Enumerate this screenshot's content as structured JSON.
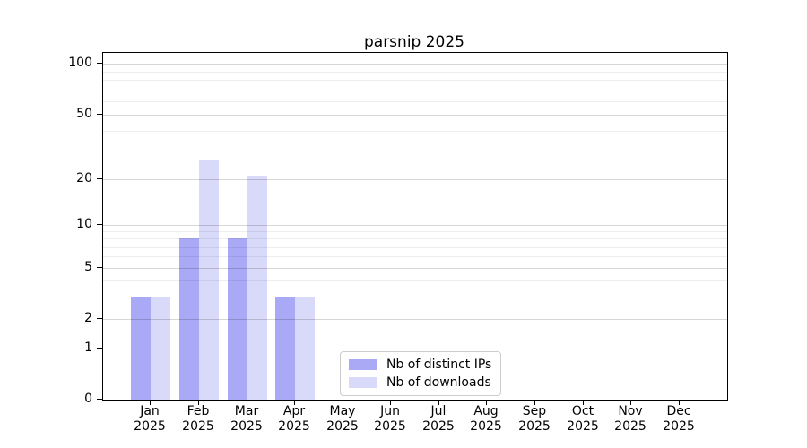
{
  "chart_data": {
    "type": "bar",
    "title": "parsnip 2025",
    "categories": [
      "Jan",
      "Feb",
      "Mar",
      "Apr",
      "May",
      "Jun",
      "Jul",
      "Aug",
      "Sep",
      "Oct",
      "Nov",
      "Dec"
    ],
    "x_tick_year": "2025",
    "series": [
      {
        "name": "Nb of distinct IPs",
        "color": "#a9a9f5",
        "values": [
          3,
          8,
          8,
          3,
          0,
          0,
          0,
          0,
          0,
          0,
          0,
          0
        ]
      },
      {
        "name": "Nb of downloads",
        "color": "#d9d9fa",
        "values": [
          3,
          26,
          21,
          3,
          0,
          0,
          0,
          0,
          0,
          0,
          0,
          0
        ]
      }
    ],
    "yaxis": {
      "scale": "log-like-with-zero-baseline",
      "major_ticks": [
        0,
        1,
        2,
        5,
        10,
        20,
        50,
        100
      ],
      "minor_gridlines": [
        3,
        4,
        6,
        7,
        8,
        9,
        30,
        40,
        60,
        70,
        80,
        90
      ],
      "ylim": [
        0,
        130
      ]
    },
    "legend": {
      "position": "lower-center-inside",
      "entries_from_series": true
    },
    "grid": {
      "orientation": "horizontal",
      "drawn_over_bars": true
    },
    "colors": {
      "background": "#ffffff",
      "axis_spine": "#000000",
      "major_grid": "rgba(0,0,0,0.16)",
      "minor_grid": "rgba(0,0,0,0.07)"
    }
  }
}
